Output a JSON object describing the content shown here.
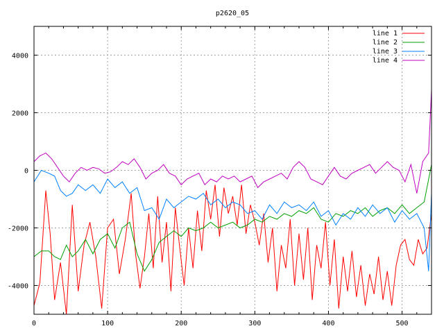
{
  "chart_data": {
    "type": "line",
    "title": "p2620_05",
    "xlabel": "",
    "ylabel": "",
    "xlim": [
      0,
      540
    ],
    "ylim": [
      -5000,
      5000
    ],
    "xticks": [
      0,
      100,
      200,
      300,
      400,
      500
    ],
    "yticks": [
      -4000,
      -2000,
      0,
      2000,
      4000
    ],
    "grid": true,
    "legend_position": "top-right",
    "series": [
      {
        "name": "line 1",
        "color": "#ff0000",
        "points": [
          [
            0,
            -4700
          ],
          [
            8,
            -3900
          ],
          [
            16,
            -700
          ],
          [
            22,
            -2200
          ],
          [
            28,
            -4500
          ],
          [
            36,
            -3200
          ],
          [
            44,
            -5000
          ],
          [
            52,
            -1200
          ],
          [
            60,
            -4200
          ],
          [
            68,
            -2600
          ],
          [
            76,
            -1800
          ],
          [
            84,
            -3000
          ],
          [
            92,
            -4800
          ],
          [
            100,
            -2000
          ],
          [
            108,
            -1700
          ],
          [
            116,
            -3600
          ],
          [
            124,
            -2400
          ],
          [
            132,
            -800
          ],
          [
            138,
            -2900
          ],
          [
            144,
            -4100
          ],
          [
            150,
            -3000
          ],
          [
            156,
            -1500
          ],
          [
            162,
            -3400
          ],
          [
            168,
            -900
          ],
          [
            174,
            -3200
          ],
          [
            180,
            -1800
          ],
          [
            186,
            -4200
          ],
          [
            192,
            -1300
          ],
          [
            198,
            -2700
          ],
          [
            204,
            -4000
          ],
          [
            210,
            -2000
          ],
          [
            216,
            -3400
          ],
          [
            222,
            -1400
          ],
          [
            228,
            -2800
          ],
          [
            234,
            -700
          ],
          [
            240,
            -1700
          ],
          [
            246,
            -500
          ],
          [
            252,
            -2300
          ],
          [
            258,
            -600
          ],
          [
            264,
            -1500
          ],
          [
            270,
            -900
          ],
          [
            276,
            -1900
          ],
          [
            282,
            -500
          ],
          [
            288,
            -2200
          ],
          [
            294,
            -1200
          ],
          [
            300,
            -1800
          ],
          [
            306,
            -2600
          ],
          [
            312,
            -1500
          ],
          [
            318,
            -3200
          ],
          [
            324,
            -2000
          ],
          [
            330,
            -4200
          ],
          [
            336,
            -2600
          ],
          [
            342,
            -3400
          ],
          [
            348,
            -1700
          ],
          [
            354,
            -4000
          ],
          [
            360,
            -2200
          ],
          [
            366,
            -3800
          ],
          [
            372,
            -2000
          ],
          [
            378,
            -4500
          ],
          [
            384,
            -2600
          ],
          [
            390,
            -3400
          ],
          [
            396,
            -1800
          ],
          [
            402,
            -4000
          ],
          [
            408,
            -2400
          ],
          [
            414,
            -4800
          ],
          [
            420,
            -3000
          ],
          [
            426,
            -4200
          ],
          [
            432,
            -2800
          ],
          [
            438,
            -4400
          ],
          [
            444,
            -3300
          ],
          [
            450,
            -4700
          ],
          [
            456,
            -3600
          ],
          [
            462,
            -4300
          ],
          [
            468,
            -3000
          ],
          [
            474,
            -4500
          ],
          [
            480,
            -3500
          ],
          [
            486,
            -4700
          ],
          [
            492,
            -3300
          ],
          [
            498,
            -2600
          ],
          [
            504,
            -2400
          ],
          [
            510,
            -3100
          ],
          [
            516,
            -3300
          ],
          [
            522,
            -2400
          ],
          [
            528,
            -2900
          ],
          [
            534,
            -2700
          ],
          [
            540,
            -1500
          ]
        ]
      },
      {
        "name": "line 2",
        "color": "#00a000",
        "points": [
          [
            0,
            -3000
          ],
          [
            10,
            -2800
          ],
          [
            20,
            -2800
          ],
          [
            28,
            -3000
          ],
          [
            36,
            -3100
          ],
          [
            44,
            -2600
          ],
          [
            52,
            -3000
          ],
          [
            60,
            -2800
          ],
          [
            70,
            -2400
          ],
          [
            80,
            -2900
          ],
          [
            90,
            -2400
          ],
          [
            100,
            -2200
          ],
          [
            110,
            -2700
          ],
          [
            120,
            -2000
          ],
          [
            130,
            -1800
          ],
          [
            140,
            -2900
          ],
          [
            150,
            -3500
          ],
          [
            160,
            -3100
          ],
          [
            170,
            -2500
          ],
          [
            180,
            -2300
          ],
          [
            190,
            -2100
          ],
          [
            200,
            -2300
          ],
          [
            210,
            -2000
          ],
          [
            220,
            -2100
          ],
          [
            230,
            -2000
          ],
          [
            240,
            -1800
          ],
          [
            250,
            -2000
          ],
          [
            260,
            -1900
          ],
          [
            270,
            -1800
          ],
          [
            280,
            -2000
          ],
          [
            290,
            -1900
          ],
          [
            300,
            -1700
          ],
          [
            310,
            -1800
          ],
          [
            320,
            -1600
          ],
          [
            330,
            -1700
          ],
          [
            340,
            -1500
          ],
          [
            350,
            -1600
          ],
          [
            360,
            -1400
          ],
          [
            370,
            -1500
          ],
          [
            380,
            -1300
          ],
          [
            390,
            -1700
          ],
          [
            400,
            -1800
          ],
          [
            410,
            -1500
          ],
          [
            420,
            -1600
          ],
          [
            430,
            -1400
          ],
          [
            440,
            -1500
          ],
          [
            450,
            -1300
          ],
          [
            460,
            -1600
          ],
          [
            470,
            -1400
          ],
          [
            480,
            -1300
          ],
          [
            490,
            -1500
          ],
          [
            500,
            -1200
          ],
          [
            510,
            -1500
          ],
          [
            520,
            -1300
          ],
          [
            530,
            -1100
          ],
          [
            540,
            200
          ]
        ]
      },
      {
        "name": "line 3",
        "color": "#0080ff",
        "points": [
          [
            0,
            -400
          ],
          [
            10,
            0
          ],
          [
            20,
            -100
          ],
          [
            28,
            -200
          ],
          [
            36,
            -700
          ],
          [
            44,
            -900
          ],
          [
            52,
            -800
          ],
          [
            60,
            -500
          ],
          [
            70,
            -700
          ],
          [
            80,
            -500
          ],
          [
            90,
            -800
          ],
          [
            100,
            -300
          ],
          [
            110,
            -600
          ],
          [
            120,
            -400
          ],
          [
            130,
            -800
          ],
          [
            140,
            -600
          ],
          [
            150,
            -1400
          ],
          [
            160,
            -1300
          ],
          [
            170,
            -1700
          ],
          [
            180,
            -1000
          ],
          [
            190,
            -1300
          ],
          [
            200,
            -1100
          ],
          [
            210,
            -900
          ],
          [
            220,
            -1000
          ],
          [
            230,
            -800
          ],
          [
            240,
            -1200
          ],
          [
            250,
            -1000
          ],
          [
            260,
            -1300
          ],
          [
            270,
            -1100
          ],
          [
            280,
            -1200
          ],
          [
            290,
            -1500
          ],
          [
            300,
            -1400
          ],
          [
            310,
            -1700
          ],
          [
            320,
            -1200
          ],
          [
            330,
            -1500
          ],
          [
            340,
            -1100
          ],
          [
            350,
            -1300
          ],
          [
            360,
            -1200
          ],
          [
            370,
            -1400
          ],
          [
            380,
            -1100
          ],
          [
            390,
            -1600
          ],
          [
            400,
            -1400
          ],
          [
            410,
            -1900
          ],
          [
            420,
            -1500
          ],
          [
            430,
            -1700
          ],
          [
            440,
            -1300
          ],
          [
            450,
            -1600
          ],
          [
            460,
            -1200
          ],
          [
            470,
            -1500
          ],
          [
            480,
            -1300
          ],
          [
            490,
            -1800
          ],
          [
            500,
            -1400
          ],
          [
            510,
            -1700
          ],
          [
            520,
            -1500
          ],
          [
            530,
            -2000
          ],
          [
            536,
            -3500
          ],
          [
            540,
            -800
          ]
        ]
      },
      {
        "name": "line 4",
        "color": "#c000c0",
        "points": [
          [
            0,
            300
          ],
          [
            8,
            500
          ],
          [
            16,
            600
          ],
          [
            24,
            400
          ],
          [
            32,
            100
          ],
          [
            40,
            -200
          ],
          [
            48,
            -400
          ],
          [
            56,
            -100
          ],
          [
            64,
            100
          ],
          [
            72,
            0
          ],
          [
            80,
            100
          ],
          [
            88,
            50
          ],
          [
            96,
            -100
          ],
          [
            104,
            -50
          ],
          [
            112,
            100
          ],
          [
            120,
            300
          ],
          [
            128,
            200
          ],
          [
            136,
            400
          ],
          [
            144,
            100
          ],
          [
            152,
            -300
          ],
          [
            160,
            -100
          ],
          [
            168,
            0
          ],
          [
            176,
            200
          ],
          [
            184,
            -100
          ],
          [
            192,
            -200
          ],
          [
            200,
            -500
          ],
          [
            208,
            -300
          ],
          [
            216,
            -200
          ],
          [
            224,
            -100
          ],
          [
            232,
            -500
          ],
          [
            240,
            -300
          ],
          [
            248,
            -400
          ],
          [
            256,
            -200
          ],
          [
            264,
            -300
          ],
          [
            272,
            -200
          ],
          [
            280,
            -400
          ],
          [
            288,
            -300
          ],
          [
            296,
            -200
          ],
          [
            304,
            -600
          ],
          [
            312,
            -400
          ],
          [
            320,
            -300
          ],
          [
            328,
            -200
          ],
          [
            336,
            -100
          ],
          [
            344,
            -300
          ],
          [
            352,
            100
          ],
          [
            360,
            300
          ],
          [
            368,
            100
          ],
          [
            376,
            -300
          ],
          [
            384,
            -400
          ],
          [
            392,
            -500
          ],
          [
            400,
            -200
          ],
          [
            408,
            100
          ],
          [
            416,
            -200
          ],
          [
            424,
            -300
          ],
          [
            432,
            -100
          ],
          [
            440,
            0
          ],
          [
            448,
            100
          ],
          [
            456,
            200
          ],
          [
            464,
            -100
          ],
          [
            472,
            100
          ],
          [
            480,
            300
          ],
          [
            488,
            100
          ],
          [
            496,
            0
          ],
          [
            504,
            -400
          ],
          [
            512,
            200
          ],
          [
            520,
            -800
          ],
          [
            528,
            300
          ],
          [
            536,
            600
          ],
          [
            540,
            2800
          ]
        ]
      }
    ]
  }
}
